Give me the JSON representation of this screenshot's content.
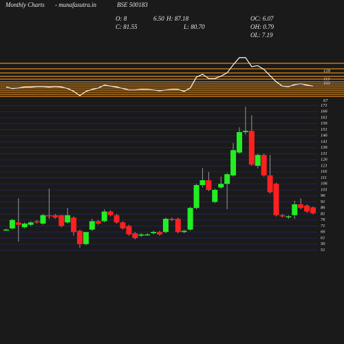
{
  "header": {
    "left": "Monthly Charts",
    "site": "- munafasutra.in",
    "symbol": "BSE 500183",
    "o": "O: 8",
    "o2": "6.50",
    "h": "H: 87.18",
    "c": "C: 81.55",
    "l": "L: 80.70",
    "oc": "OC: 6.07",
    "oh": "OH: 0.79",
    "ol": "OL: 7.19"
  },
  "chart_data": [
    {
      "type": "line",
      "color": "#ffffff",
      "ylim": [
        62,
        146
      ],
      "yticks": [
        129,
        113,
        103,
        67
      ],
      "values": [
        96,
        93,
        94,
        96,
        96,
        97,
        97,
        96,
        97,
        96,
        93,
        87,
        78,
        87,
        91,
        94,
        100,
        98,
        96,
        93,
        90,
        90,
        91,
        91,
        90,
        88,
        90,
        91,
        91,
        87,
        94,
        117,
        123,
        114,
        114,
        119,
        126,
        143,
        158,
        158,
        139,
        141,
        133,
        120,
        107,
        98,
        97,
        101,
        103,
        100,
        98
      ]
    },
    {
      "type": "candlestick",
      "up_color": "#22ee22",
      "down_color": "#ff2020",
      "ylim": [
        49,
        173
      ],
      "yticks": [
        171,
        166,
        161,
        156,
        151,
        146,
        141,
        136,
        131,
        126,
        121,
        116,
        111,
        106,
        101,
        96,
        91,
        86,
        81,
        76,
        71,
        66,
        61,
        56,
        51
      ],
      "ohlc": [
        [
          68,
          69,
          67,
          68
        ],
        [
          69,
          77,
          68,
          76
        ],
        [
          74,
          94,
          58,
          72
        ],
        [
          70,
          74,
          69,
          73
        ],
        [
          72,
          75,
          71,
          74
        ],
        [
          75,
          76,
          73,
          74
        ],
        [
          73,
          81,
          72,
          80
        ],
        [
          80,
          102,
          77,
          79
        ],
        [
          80,
          81,
          77,
          78
        ],
        [
          80,
          80,
          70,
          71
        ],
        [
          74,
          86,
          73,
          80
        ],
        [
          78,
          79,
          63,
          66
        ],
        [
          67,
          68,
          53,
          56
        ],
        [
          56,
          66,
          55,
          66
        ],
        [
          68,
          77,
          67,
          75
        ],
        [
          75,
          76,
          72,
          73
        ],
        [
          75,
          85,
          74,
          83
        ],
        [
          83,
          84,
          79,
          80
        ],
        [
          80,
          81,
          73,
          74
        ],
        [
          74,
          75,
          68,
          69
        ],
        [
          71,
          72,
          63,
          64
        ],
        [
          65,
          66,
          60,
          61
        ],
        [
          63,
          65,
          62,
          64
        ],
        [
          64,
          65,
          63,
          64
        ],
        [
          65,
          67,
          64,
          66
        ],
        [
          66,
          67,
          63,
          64
        ],
        [
          66,
          78,
          65,
          77
        ],
        [
          77,
          78,
          75,
          76
        ],
        [
          77,
          78,
          65,
          66
        ],
        [
          66,
          68,
          65,
          67
        ],
        [
          68,
          87,
          67,
          86
        ],
        [
          86,
          106,
          85,
          105
        ],
        [
          105,
          119,
          103,
          109
        ],
        [
          109,
          116,
          100,
          101
        ],
        [
          91,
          102,
          90,
          101
        ],
        [
          103,
          112,
          102,
          106
        ],
        [
          106,
          115,
          85,
          114
        ],
        [
          113,
          140,
          112,
          134
        ],
        [
          132,
          153,
          131,
          149
        ],
        [
          149,
          170,
          147,
          150
        ],
        [
          150,
          163,
          121,
          122
        ],
        [
          121,
          131,
          119,
          130
        ],
        [
          130,
          131,
          112,
          113
        ],
        [
          113,
          130,
          98,
          99
        ],
        [
          106,
          107,
          79,
          80
        ],
        [
          80,
          81,
          78,
          79
        ],
        [
          79,
          80,
          77,
          79
        ],
        [
          80,
          92,
          77,
          89
        ],
        [
          89,
          94,
          85,
          86
        ],
        [
          88,
          89,
          82,
          83
        ],
        [
          86.5,
          87.18,
          80.7,
          81.55
        ]
      ]
    }
  ]
}
